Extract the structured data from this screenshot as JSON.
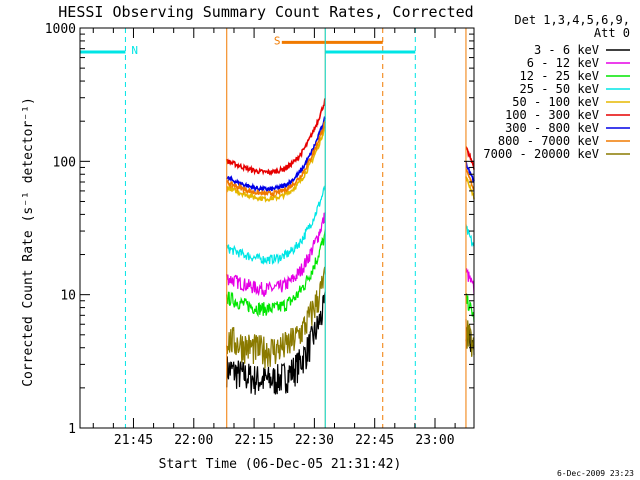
{
  "colors": {
    "background": "#ffffff",
    "axes": "#000000",
    "night_marker": "#00e5e5",
    "saa_marker": "#f07a00"
  },
  "chart_data": {
    "type": "line",
    "title": "HESSI Observing Summary Count Rates, Corrected",
    "ylabel": "Corrected Count Rate (s⁻¹ detector⁻¹)",
    "xlabel": "Start Time (06-Dec-05 21:31:42)",
    "x_units": "minutes after 21:31:42 UT",
    "xlim": [
      0,
      98
    ],
    "ylim": [
      1,
      1000
    ],
    "yscale": "log",
    "x_ticks": [
      {
        "label": "21:45",
        "value": 13.3
      },
      {
        "label": "22:00",
        "value": 28.3
      },
      {
        "label": "22:15",
        "value": 43.3
      },
      {
        "label": "22:30",
        "value": 58.3
      },
      {
        "label": "22:45",
        "value": 73.3
      },
      {
        "label": "23:00",
        "value": 88.3
      }
    ],
    "y_ticks": [
      {
        "label": "1",
        "value": 1
      },
      {
        "label": "10",
        "value": 10
      },
      {
        "label": "100",
        "value": 100
      },
      {
        "label": "1000",
        "value": 1000
      }
    ],
    "legend": {
      "placement": "right",
      "header": [
        "Det 1,3,4,5,6,9,",
        "Att 0"
      ]
    },
    "segments": [
      [
        36.5,
        61.0
      ],
      [
        96.0,
        98.0
      ]
    ],
    "series": [
      {
        "name": "3 - 6 keV",
        "color": "#000000",
        "level": 2.5,
        "segment_levels": [
          2.5,
          4.3
        ],
        "rise": 1.2
      },
      {
        "name": "6 - 12 keV",
        "color": "#e600e6",
        "level": 12,
        "segment_levels": [
          12,
          12
        ],
        "rise": 1.1
      },
      {
        "name": "12 - 25 keV",
        "color": "#00e600",
        "level": 8.5,
        "segment_levels": [
          8.5,
          7.5
        ],
        "rise": 1.1
      },
      {
        "name": "25 - 50 keV",
        "color": "#00e6e6",
        "level": 20,
        "segment_levels": [
          20,
          25
        ],
        "rise": 1.0
      },
      {
        "name": "50 - 100 keV",
        "color": "#e6b800",
        "level": 57,
        "segment_levels": [
          57,
          60
        ],
        "rise": 1.0
      },
      {
        "name": "100 - 300 keV",
        "color": "#e60000",
        "level": 90,
        "segment_levels": [
          90,
          100
        ],
        "rise": 1.0
      },
      {
        "name": "300 - 800 keV",
        "color": "#0000e6",
        "level": 67,
        "segment_levels": [
          67,
          78
        ],
        "rise": 1.0
      },
      {
        "name": "800 - 7000 keV",
        "color": "#f07a00",
        "level": 62,
        "segment_levels": [
          62,
          68
        ],
        "rise": 1.0
      },
      {
        "name": "7000 - 20000 keV",
        "color": "#8a7a00",
        "level": 4.2,
        "segment_levels": [
          4.2,
          4.3
        ],
        "rise": 1.0
      }
    ],
    "annotations": [
      {
        "label": "N",
        "type": "night",
        "bar_start": 0,
        "bar_end": 11.3,
        "bar_level": 660,
        "end_line": 11.3
      },
      {
        "label": "S",
        "type": "saa",
        "bar_start": 50.2,
        "bar_end": 75.3,
        "bar_level": 780,
        "end_line": 75.3
      },
      {
        "label": "",
        "type": "night",
        "bar_start": 61.0,
        "bar_end": 83.4,
        "bar_level": 660,
        "end_line": 83.4
      }
    ],
    "timestamp": "6-Dec-2009 23:23"
  }
}
